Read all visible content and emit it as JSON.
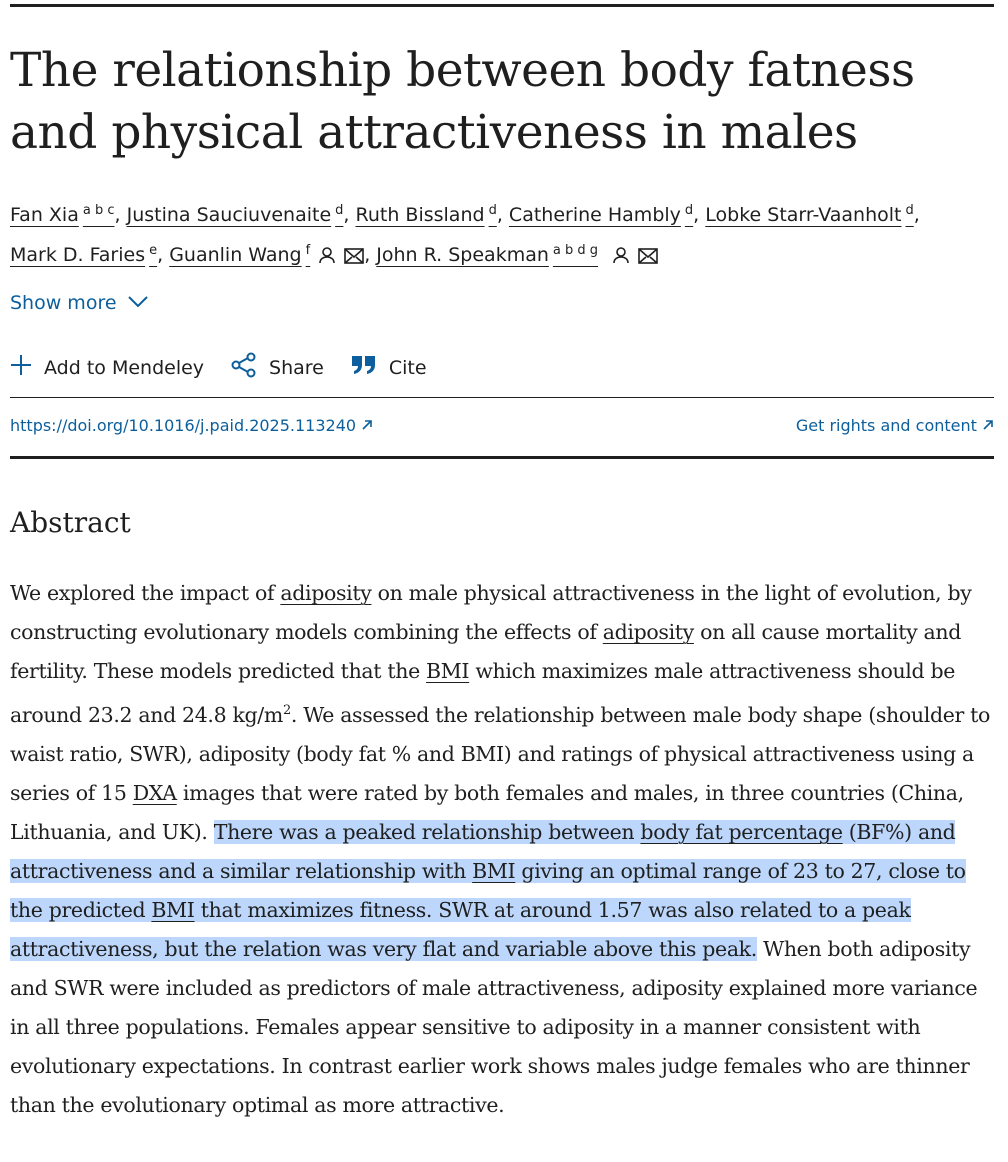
{
  "article": {
    "title": "The relationship between body fatness and physical attractiveness in males"
  },
  "authors": [
    {
      "name": "Fan Xia",
      "affil": "a b c",
      "sep": ", "
    },
    {
      "name": "Justina Sauciuvenaite",
      "affil": "d",
      "sep": ", "
    },
    {
      "name": "Ruth Bissland",
      "affil": "d",
      "sep": ", "
    },
    {
      "name": "Catherine Hambly",
      "affil": "d",
      "sep": ", "
    },
    {
      "name": "Lobke Starr-Vaanholt",
      "affil": "d",
      "sep": ","
    },
    {
      "name": "Mark D. Faries",
      "affil": "e",
      "sep": ", "
    },
    {
      "name": "Guanlin Wang",
      "affil": "f",
      "sep": ", "
    },
    {
      "name": "John R. Speakman",
      "affil": "a b d g",
      "sep": ""
    }
  ],
  "icons": {
    "person": "person-icon",
    "mail": "envelope-icon",
    "chevron": "chevron-down-icon",
    "plus": "plus-icon",
    "share": "share-icon",
    "quote": "quote-icon",
    "external": "arrow-up-right-icon"
  },
  "colors": {
    "link": "#0c5f9c",
    "text": "#1f1f1f",
    "highlight": "#bcd7fb"
  },
  "show_more": "Show more",
  "actions": {
    "mendeley": "Add to Mendeley",
    "share": "Share",
    "cite": "Cite"
  },
  "doi": "https://doi.org/10.1016/j.paid.2025.113240",
  "rights": "Get rights and content",
  "abstract": {
    "heading": "Abstract",
    "p1": "We explored the impact of ",
    "t1": "adiposity",
    "p2": " on male physical attractiveness in the light of evolution, by constructing evolutionary models combining the effects of ",
    "t2": "adiposity",
    "p3": " on all cause mortality and fertility. These models predicted that the ",
    "t3": "BMI",
    "p4": " which maximizes male attractiveness should be around 23.2 and 24.8 kg/m",
    "sup": "2",
    "p5": ". We assessed the relationship between male body shape (shoulder to waist ratio, SWR), adiposity (body fat % and BMI) and ratings of physical attractiveness using a series of 15 ",
    "t4": "DXA",
    "p6": " images that were rated by both females and males, in three countries (China, Lithuania, and UK). ",
    "h1": "There was a peaked relationship between ",
    "t5": "body fat percentage",
    "h2": " (BF%) and attractiveness and a similar relationship with ",
    "t6": "BMI",
    "h3": " giving an optimal range of 23 to 27, close to the predicted ",
    "t7": "BMI",
    "h4": " that maximizes fitness. SWR at around 1.57 was also related to a peak attractiveness, but the relation was very flat and variable above this peak.",
    "p7": " When both adiposity and SWR were included as predictors of male attractiveness, adiposity explained more variance in all three populations. Females appear sensitive to adiposity in a manner consistent with evolutionary expectations. In contrast earlier work shows males judge females who are thinner than the evolutionary optimal as more attractive."
  }
}
